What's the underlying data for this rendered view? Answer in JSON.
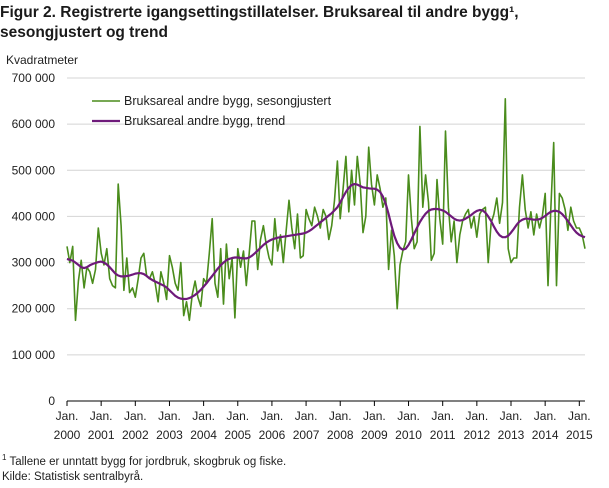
{
  "figure": {
    "title": "Figur 2. Registrerte igangsettingstillatelser. Bruksareal til andre bygg¹, sesongjustert og trend",
    "footnote_mark": "1",
    "footnote": "Tallene er unntatt bygg for jordbruk, skogbruk og fiske.",
    "source": "Kilde:  Statistisk sentralbyrå."
  },
  "chart_data": {
    "type": "line",
    "title": "Figur 2. Registrerte igangsettingstillatelser. Bruksareal til andre bygg¹, sesongjustert og trend",
    "ylabel": "Kvadratmeter",
    "xlabel": "",
    "ylim": [
      0,
      700000
    ],
    "xlim": [
      "2000-01",
      "2015-03"
    ],
    "grid": "horizontal",
    "legend": "top-left",
    "y_ticks": [
      {
        "value": 0,
        "label": "0"
      },
      {
        "value": 100000,
        "label": "100 000"
      },
      {
        "value": 200000,
        "label": "200 000"
      },
      {
        "value": 300000,
        "label": "300 000"
      },
      {
        "value": 400000,
        "label": "400 000"
      },
      {
        "value": 500000,
        "label": "500 000"
      },
      {
        "value": 600000,
        "label": "600 000"
      },
      {
        "value": 700000,
        "label": "700 000"
      }
    ],
    "x_ticks": [
      {
        "year": 2000,
        "line1": "Jan.",
        "line2": "2000"
      },
      {
        "year": 2001,
        "line1": "Jan.",
        "line2": "2001"
      },
      {
        "year": 2002,
        "line1": "Jan.",
        "line2": "2002"
      },
      {
        "year": 2003,
        "line1": "Jan.",
        "line2": "2003"
      },
      {
        "year": 2004,
        "line1": "Jan.",
        "line2": "2004"
      },
      {
        "year": 2005,
        "line1": "Jan.",
        "line2": "2005"
      },
      {
        "year": 2006,
        "line1": "Jan.",
        "line2": "2006"
      },
      {
        "year": 2007,
        "line1": "Jan.",
        "line2": "2007"
      },
      {
        "year": 2008,
        "line1": "Jan.",
        "line2": "2008"
      },
      {
        "year": 2009,
        "line1": "Jan.",
        "line2": "2009"
      },
      {
        "year": 2010,
        "line1": "Jan.",
        "line2": "2010"
      },
      {
        "year": 2011,
        "line1": "Jan.",
        "line2": "2011"
      },
      {
        "year": 2012,
        "line1": "Jan.",
        "line2": "2012"
      },
      {
        "year": 2013,
        "line1": "Jan.",
        "line2": "2013"
      },
      {
        "year": 2014,
        "line1": "Jan.",
        "line2": "2014"
      },
      {
        "year": 2015,
        "line1": "Jan.",
        "line2": "2015"
      }
    ],
    "series": [
      {
        "name": "Bruksareal andre bygg, sesongjustert",
        "color": "#4a8c1c",
        "start": "2000-01",
        "frequency": "monthly",
        "values": [
          335000,
          300000,
          335000,
          175000,
          260000,
          305000,
          245000,
          290000,
          280000,
          255000,
          285000,
          375000,
          320000,
          295000,
          330000,
          265000,
          250000,
          245000,
          470000,
          380000,
          240000,
          310000,
          235000,
          245000,
          225000,
          265000,
          310000,
          320000,
          270000,
          265000,
          280000,
          255000,
          215000,
          280000,
          255000,
          220000,
          315000,
          290000,
          255000,
          240000,
          300000,
          185000,
          215000,
          175000,
          230000,
          260000,
          225000,
          205000,
          265000,
          255000,
          320000,
          395000,
          255000,
          225000,
          330000,
          210000,
          340000,
          265000,
          310000,
          180000,
          330000,
          290000,
          325000,
          250000,
          320000,
          390000,
          390000,
          285000,
          350000,
          380000,
          340000,
          310000,
          295000,
          395000,
          325000,
          360000,
          300000,
          370000,
          435000,
          375000,
          330000,
          405000,
          310000,
          315000,
          415000,
          395000,
          380000,
          420000,
          400000,
          375000,
          415000,
          400000,
          350000,
          380000,
          435000,
          520000,
          395000,
          460000,
          530000,
          410000,
          500000,
          425000,
          530000,
          470000,
          365000,
          400000,
          550000,
          470000,
          425000,
          490000,
          460000,
          420000,
          440000,
          285000,
          370000,
          315000,
          200000,
          295000,
          325000,
          345000,
          490000,
          395000,
          330000,
          345000,
          595000,
          420000,
          490000,
          430000,
          305000,
          320000,
          480000,
          395000,
          340000,
          585000,
          420000,
          345000,
          390000,
          300000,
          360000,
          390000,
          405000,
          415000,
          375000,
          400000,
          355000,
          405000,
          415000,
          420000,
          300000,
          385000,
          405000,
          440000,
          385000,
          430000,
          655000,
          330000,
          300000,
          310000,
          310000,
          420000,
          490000,
          415000,
          375000,
          410000,
          360000,
          405000,
          375000,
          400000,
          450000,
          250000,
          415000,
          560000,
          250000,
          450000,
          440000,
          415000,
          370000,
          420000,
          390000,
          375000,
          375000,
          360000,
          330000
        ]
      },
      {
        "name": "Bruksareal andre bygg, trend",
        "color": "#6e1a7a",
        "start": "2000-01",
        "frequency": "monthly",
        "values": [
          308000,
          306000,
          304000,
          300000,
          295000,
          290000,
          288000,
          290000,
          294000,
          297000,
          299000,
          301000,
          302000,
          300000,
          296000,
          290000,
          283000,
          276000,
          272000,
          270000,
          270000,
          271000,
          272000,
          274000,
          276000,
          277000,
          277000,
          275000,
          271000,
          266000,
          262000,
          259000,
          256000,
          253000,
          250000,
          246000,
          240000,
          234000,
          228000,
          224000,
          222000,
          221000,
          221000,
          223000,
          226000,
          230000,
          235000,
          241000,
          248000,
          255000,
          263000,
          271000,
          279000,
          287000,
          294000,
          300000,
          305000,
          308000,
          310000,
          311000,
          311000,
          310000,
          309000,
          309000,
          311000,
          315000,
          320000,
          326000,
          332000,
          338000,
          343000,
          347000,
          350000,
          352000,
          354000,
          355000,
          356000,
          357000,
          358000,
          359000,
          360000,
          361000,
          362000,
          363000,
          365000,
          368000,
          372000,
          377000,
          382000,
          387000,
          392000,
          397000,
          402000,
          407000,
          413000,
          420000,
          430000,
          442000,
          453000,
          462000,
          468000,
          470000,
          469000,
          466000,
          463000,
          462000,
          461000,
          460000,
          460000,
          458000,
          453000,
          443000,
          427000,
          405000,
          380000,
          358000,
          342000,
          332000,
          328000,
          330000,
          338000,
          350000,
          363000,
          376000,
          388000,
          398000,
          406000,
          412000,
          415000,
          416000,
          416000,
          415000,
          413000,
          410000,
          405000,
          400000,
          395000,
          392000,
          391000,
          392000,
          395000,
          399000,
          403000,
          408000,
          412000,
          414000,
          413000,
          408000,
          400000,
          390000,
          378000,
          367000,
          359000,
          355000,
          355000,
          358000,
          365000,
          373000,
          382000,
          389000,
          393000,
          395000,
          395000,
          394000,
          393000,
          393000,
          394000,
          397000,
          401000,
          406000,
          410000,
          412000,
          412000,
          410000,
          405000,
          398000,
          390000,
          381000,
          372000,
          365000,
          360000,
          357000,
          355000
        ]
      }
    ]
  }
}
